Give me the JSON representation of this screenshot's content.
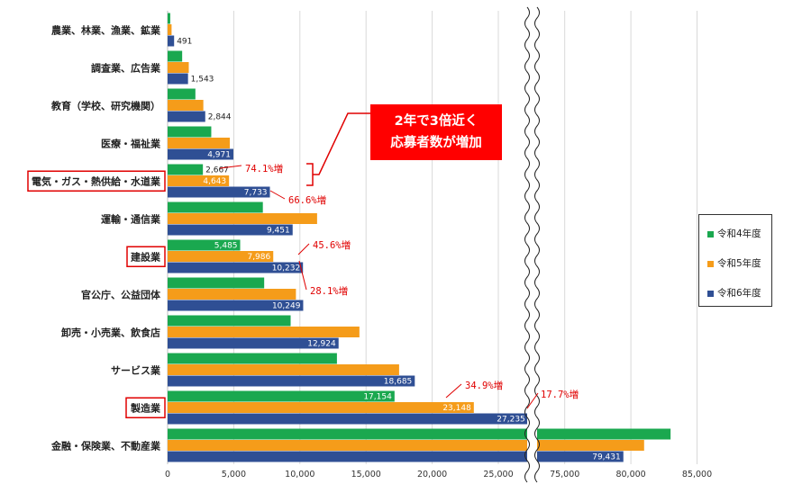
{
  "chart_data": {
    "type": "bar",
    "orientation": "horizontal",
    "categories": [
      "農業、林業、漁業、鉱業",
      "調査業、広告業",
      "教育（学校、研究機関）",
      "医療・福祉業",
      "電気・ガス・熱供給・水道業",
      "運輸・通信業",
      "建設業",
      "官公庁、公益団体",
      "卸売・小売業、飲食店",
      "サービス業",
      "製造業",
      "金融・保険業、不動産業"
    ],
    "highlighted_categories": [
      "電気・ガス・熱供給・水道業",
      "建設業",
      "製造業"
    ],
    "series": [
      {
        "name": "令和4年度",
        "color": "#1aa84f",
        "values": [
          200,
          1100,
          2100,
          3300,
          2667,
          7200,
          5485,
          7300,
          9300,
          12800,
          17154,
          83000
        ],
        "labels": [
          "",
          "",
          "",
          "",
          "2,667",
          "",
          "5,485",
          "",
          "",
          "",
          "17,154",
          ""
        ]
      },
      {
        "name": "令和5年度",
        "color": "#f59c1a",
        "values": [
          300,
          1600,
          2700,
          4700,
          4643,
          11300,
          7986,
          9700,
          14500,
          17500,
          23148,
          81000
        ],
        "labels": [
          "",
          "",
          "",
          "",
          "4,643",
          "",
          "7,986",
          "",
          "",
          "",
          "23,148",
          ""
        ]
      },
      {
        "name": "令和6年度",
        "color": "#2f4f94",
        "values": [
          491,
          1543,
          2844,
          4971,
          7733,
          9451,
          10232,
          10249,
          12924,
          18685,
          27235,
          79431
        ],
        "labels": [
          "491",
          "1,543",
          "2,844",
          "4,971",
          "7,733",
          "9,451",
          "10,232",
          "10,249",
          "12,924",
          "18,685",
          "27,235",
          "79,431"
        ]
      }
    ],
    "x_ticks": [
      "0",
      "5,000",
      "10,000",
      "15,000",
      "20,000",
      "25,000",
      "75,000",
      "80,000",
      "85,000"
    ],
    "x_axis_break": [
      27500,
      72500
    ],
    "annotations": [
      "74.1%増",
      "66.6%増",
      "45.6%増",
      "28.1%増",
      "34.9%増",
      "17.7%増"
    ],
    "legend_position": "right",
    "grid": true
  },
  "callout": {
    "line1": "2年で3倍近く",
    "line2": "応募者数が増加"
  },
  "colors": {
    "accent": "#ff0000"
  }
}
